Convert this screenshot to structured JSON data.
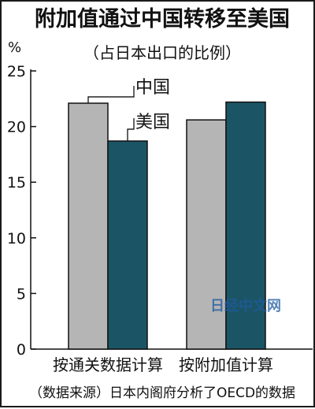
{
  "chart_data": {
    "type": "bar",
    "title": "附加值通过中国转移至美国",
    "subtitle": "（占日本出口的比例）",
    "unit": "%",
    "categories": [
      "按通关数据计算",
      "按附加值计算"
    ],
    "series": [
      {
        "name": "中国",
        "color": "#b5b5b5",
        "values": [
          22.1,
          20.6
        ]
      },
      {
        "name": "美国",
        "color": "#1b5565",
        "values": [
          18.7,
          22.2
        ]
      }
    ],
    "yticks": [
      0,
      5,
      10,
      15,
      20,
      25
    ],
    "ylim": [
      0,
      25
    ],
    "grid": false,
    "source": "（数据来源）日本内阁府分析了OECD的数据"
  },
  "watermark": "日经中文网"
}
